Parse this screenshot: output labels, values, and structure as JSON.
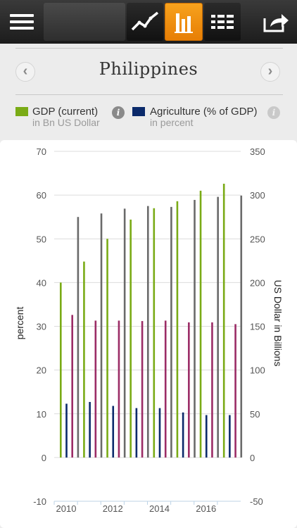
{
  "toolbar": {
    "icons": [
      "menu-icon",
      "line-chart-icon",
      "bar-chart-icon",
      "table-icon",
      "share-icon"
    ],
    "active": "bar-chart-icon",
    "active_color": "#f08c0e"
  },
  "header": {
    "country": "Philippines",
    "prev_icon": "‹",
    "next_icon": "›"
  },
  "legend": [
    {
      "label": "GDP (current)",
      "sublabel": "in Bn US Dollar",
      "color": "#7aab16"
    },
    {
      "label": "Agriculture (% of GDP)",
      "sublabel": "in percent",
      "color": "#0b2a6b"
    }
  ],
  "chart_data": {
    "type": "bar",
    "x_tick_labels": [
      "2010",
      "2012",
      "2014",
      "2016"
    ],
    "categories": [
      "2010",
      "2011",
      "2012",
      "2013",
      "2014",
      "2015",
      "2016",
      "2017"
    ],
    "ylabel_left": "percent",
    "ylabel_right": "US Dollar in Billions",
    "ylim_left": [
      -10,
      70
    ],
    "yticks_left": [
      -10,
      0,
      10,
      20,
      30,
      40,
      50,
      60,
      70
    ],
    "ylim_right": [
      -50,
      350
    ],
    "yticks_right": [
      -50,
      0,
      50,
      100,
      150,
      200,
      250,
      300,
      350
    ],
    "grid": true,
    "series": [
      {
        "axis": "right",
        "color": "#7aab16",
        "values": [
          200,
          224,
          250,
          272,
          285,
          293,
          305,
          313
        ]
      },
      {
        "axis": "left",
        "color": "#0b2a6b",
        "values": [
          12.3,
          12.7,
          11.8,
          11.3,
          11.3,
          10.3,
          9.7,
          9.7
        ]
      },
      {
        "axis": "left",
        "color": "#9b2c66",
        "values": [
          32.6,
          31.3,
          31.3,
          31.2,
          31.3,
          30.9,
          30.9,
          30.5
        ]
      },
      {
        "axis": "left",
        "color": "#6a6a6a",
        "values": [
          55,
          55.8,
          56.9,
          57.5,
          57.3,
          58.9,
          59.6,
          59.9
        ]
      }
    ]
  }
}
